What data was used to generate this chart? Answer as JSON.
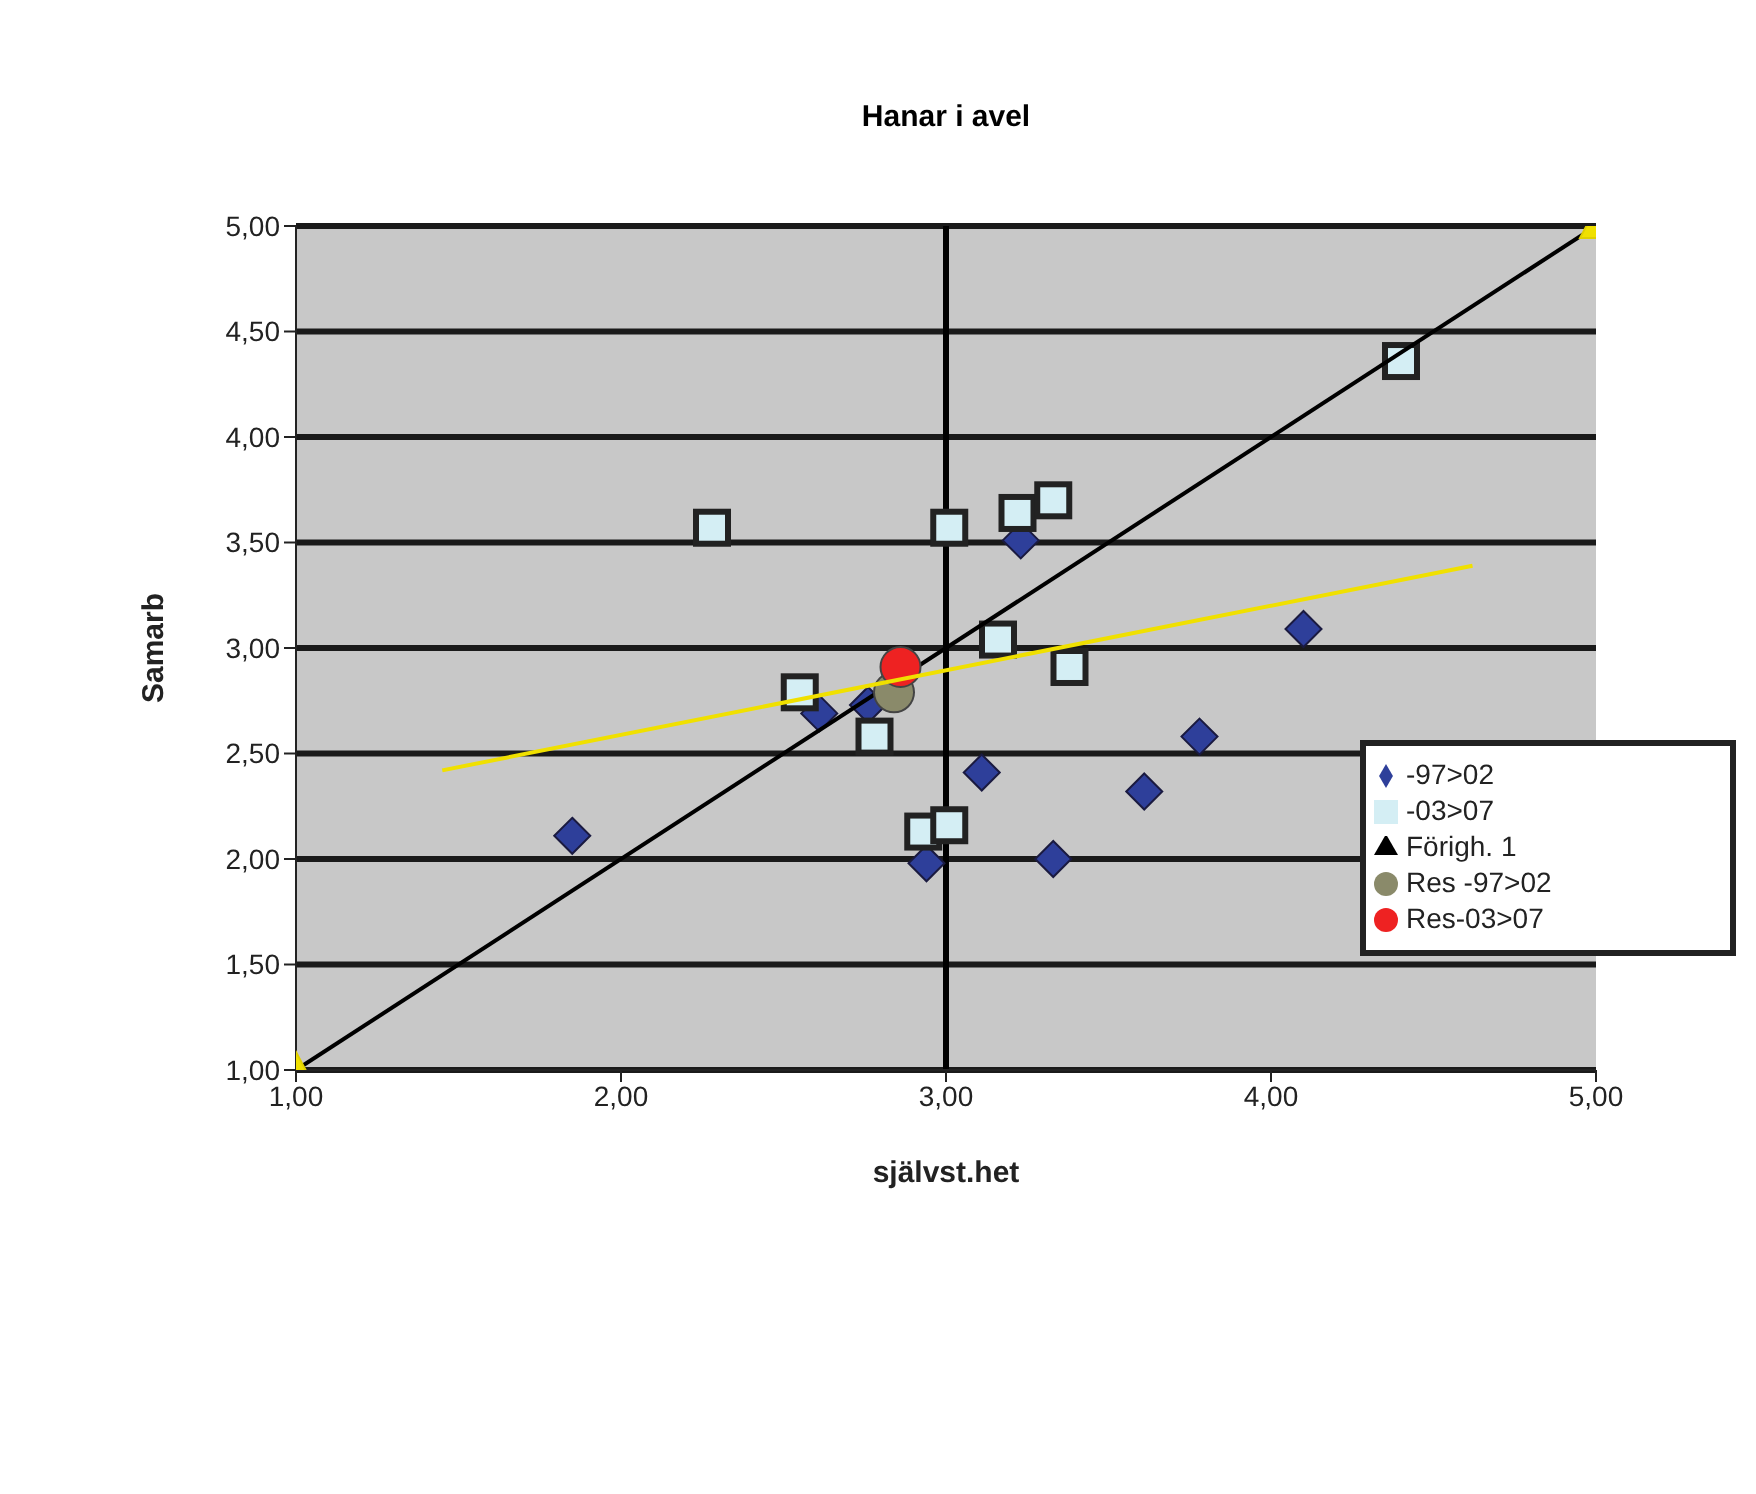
{
  "chart_data": {
    "type": "scatter",
    "title": "Hanar i avel",
    "xlabel": "självst.het",
    "ylabel": "Samarb",
    "xlim": [
      1,
      5
    ],
    "xticks": [
      {
        "value": 1,
        "label": "1,00"
      },
      {
        "value": 2,
        "label": "2,00"
      },
      {
        "value": 3,
        "label": "3,00"
      },
      {
        "value": 4,
        "label": "4,00"
      },
      {
        "value": 5,
        "label": "5,00"
      }
    ],
    "ylim": [
      1,
      5
    ],
    "yticks": [
      {
        "value": 1,
        "label": "1,00"
      },
      {
        "value": 1.5,
        "label": "1,50"
      },
      {
        "value": 2,
        "label": "2,00"
      },
      {
        "value": 2.5,
        "label": "2,50"
      },
      {
        "value": 3,
        "label": "3,00"
      },
      {
        "value": 3.5,
        "label": "3,50"
      },
      {
        "value": 4,
        "label": "4,00"
      },
      {
        "value": 4.5,
        "label": "4,50"
      },
      {
        "value": 5,
        "label": "5,00"
      }
    ],
    "grid": "y",
    "legend": "right",
    "ref_lines": [
      {
        "axis": "x",
        "value": 3,
        "color": "#000000"
      }
    ],
    "series": [
      {
        "name": "-97>02",
        "type": "scatter",
        "marker": "diamond",
        "color": "#2e3f9a",
        "x": [
          1.85,
          2.61,
          2.76,
          3.11,
          2.94,
          3.33,
          3.23,
          4.1,
          3.78,
          3.61
        ],
        "values": [
          2.11,
          2.69,
          2.73,
          2.41,
          1.98,
          2.0,
          3.51,
          3.09,
          2.58,
          2.32
        ]
      },
      {
        "name": "-03>07",
        "type": "scatter",
        "marker": "square",
        "color": "#d4eef4",
        "x": [
          2.28,
          3.01,
          3.22,
          3.33,
          3.16,
          3.38,
          2.55,
          2.78,
          2.93,
          3.01,
          4.4
        ],
        "values": [
          3.57,
          3.57,
          3.64,
          3.7,
          3.04,
          2.91,
          2.79,
          2.58,
          2.13,
          2.16,
          4.36
        ]
      },
      {
        "name": "Förigh. 1",
        "type": "line",
        "marker": "triangle",
        "color": "#000000",
        "x": [
          1,
          5
        ],
        "values": [
          1,
          5
        ]
      },
      {
        "name": "Res -97>02",
        "type": "scatter",
        "marker": "circle",
        "color": "#8a8a6a",
        "x": [
          2.84
        ],
        "values": [
          2.79
        ]
      },
      {
        "name": "Res-03>07",
        "type": "scatter",
        "marker": "circle",
        "color": "#ee2222",
        "x": [
          2.86
        ],
        "values": [
          2.91
        ]
      },
      {
        "type": "line",
        "marker": "none",
        "color": "#f0e000",
        "x": [
          1.45,
          4.62
        ],
        "values": [
          2.42,
          3.39
        ]
      }
    ]
  }
}
